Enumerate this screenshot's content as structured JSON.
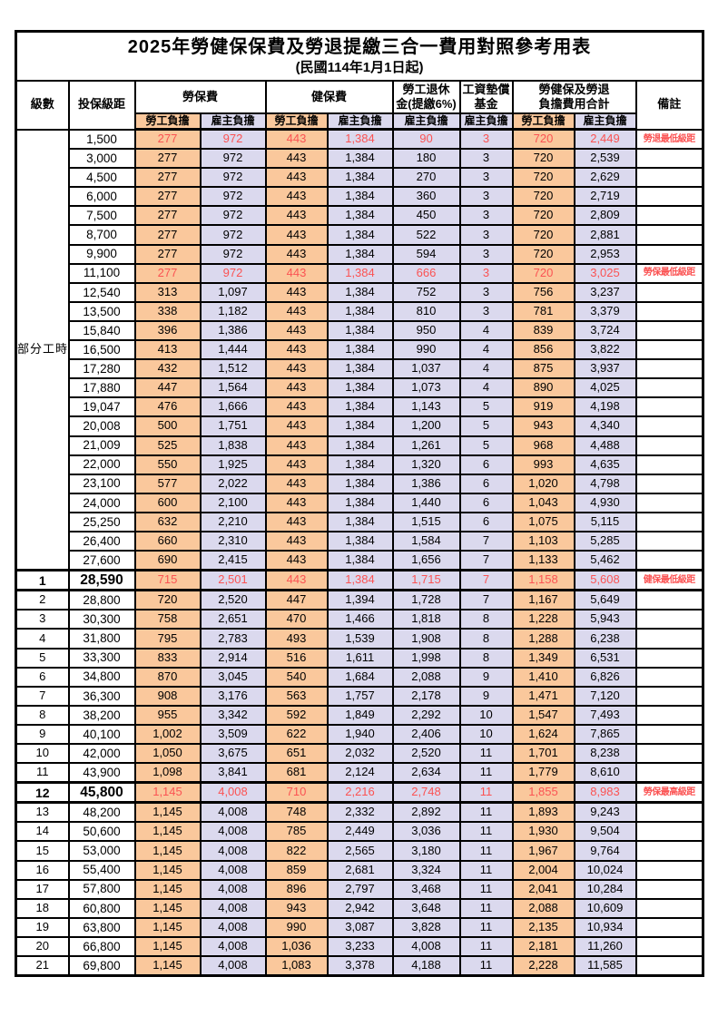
{
  "title": "2025年勞健保保費及勞退提繳三合一費用對照參考用表",
  "subtitle": "(民國114年1月1日起)",
  "colors": {
    "employee_column_bg": "#FAC89C",
    "employer_column_bg": "#DBD9EE",
    "highlight_text": "#FB5353",
    "grid_line": "#000000"
  },
  "header": {
    "level": "級數",
    "bracket": "投保級距",
    "labor": "勞保費",
    "health": "健保費",
    "pension_line1": "勞工退休",
    "pension_line2": "金(提繳6%)",
    "wage_fund_line1": "工資墊償",
    "wage_fund_line2": "基金",
    "total_line1": "勞健保及勞退",
    "total_line2": "負擔費用合計",
    "remark": "備註",
    "employee": "勞工負擔",
    "employer": "雇主負擔"
  },
  "part_time_label": "部分工時",
  "rows": [
    {
      "level": "",
      "bracket": "1,500",
      "values": [
        "277",
        "972",
        "443",
        "1,384",
        "90",
        "3",
        "720",
        "2,449"
      ],
      "remark": "勞退最低級距",
      "red": true
    },
    {
      "level": "",
      "bracket": "3,000",
      "values": [
        "277",
        "972",
        "443",
        "1,384",
        "180",
        "3",
        "720",
        "2,539"
      ],
      "remark": ""
    },
    {
      "level": "",
      "bracket": "4,500",
      "values": [
        "277",
        "972",
        "443",
        "1,384",
        "270",
        "3",
        "720",
        "2,629"
      ],
      "remark": ""
    },
    {
      "level": "",
      "bracket": "6,000",
      "values": [
        "277",
        "972",
        "443",
        "1,384",
        "360",
        "3",
        "720",
        "2,719"
      ],
      "remark": ""
    },
    {
      "level": "",
      "bracket": "7,500",
      "values": [
        "277",
        "972",
        "443",
        "1,384",
        "450",
        "3",
        "720",
        "2,809"
      ],
      "remark": ""
    },
    {
      "level": "",
      "bracket": "8,700",
      "values": [
        "277",
        "972",
        "443",
        "1,384",
        "522",
        "3",
        "720",
        "2,881"
      ],
      "remark": ""
    },
    {
      "level": "",
      "bracket": "9,900",
      "values": [
        "277",
        "972",
        "443",
        "1,384",
        "594",
        "3",
        "720",
        "2,953"
      ],
      "remark": ""
    },
    {
      "level": "",
      "bracket": "11,100",
      "values": [
        "277",
        "972",
        "443",
        "1,384",
        "666",
        "3",
        "720",
        "3,025"
      ],
      "remark": "勞保最低級距",
      "red": true
    },
    {
      "level": "",
      "bracket": "12,540",
      "values": [
        "313",
        "1,097",
        "443",
        "1,384",
        "752",
        "3",
        "756",
        "3,237"
      ],
      "remark": ""
    },
    {
      "level": "",
      "bracket": "13,500",
      "values": [
        "338",
        "1,182",
        "443",
        "1,384",
        "810",
        "3",
        "781",
        "3,379"
      ],
      "remark": ""
    },
    {
      "level": "",
      "bracket": "15,840",
      "values": [
        "396",
        "1,386",
        "443",
        "1,384",
        "950",
        "4",
        "839",
        "3,724"
      ],
      "remark": ""
    },
    {
      "level": "",
      "bracket": "16,500",
      "values": [
        "413",
        "1,444",
        "443",
        "1,384",
        "990",
        "4",
        "856",
        "3,822"
      ],
      "remark": ""
    },
    {
      "level": "",
      "bracket": "17,280",
      "values": [
        "432",
        "1,512",
        "443",
        "1,384",
        "1,037",
        "4",
        "875",
        "3,937"
      ],
      "remark": ""
    },
    {
      "level": "",
      "bracket": "17,880",
      "values": [
        "447",
        "1,564",
        "443",
        "1,384",
        "1,073",
        "4",
        "890",
        "4,025"
      ],
      "remark": ""
    },
    {
      "level": "",
      "bracket": "19,047",
      "values": [
        "476",
        "1,666",
        "443",
        "1,384",
        "1,143",
        "5",
        "919",
        "4,198"
      ],
      "remark": ""
    },
    {
      "level": "",
      "bracket": "20,008",
      "values": [
        "500",
        "1,751",
        "443",
        "1,384",
        "1,200",
        "5",
        "943",
        "4,340"
      ],
      "remark": ""
    },
    {
      "level": "",
      "bracket": "21,009",
      "values": [
        "525",
        "1,838",
        "443",
        "1,384",
        "1,261",
        "5",
        "968",
        "4,488"
      ],
      "remark": ""
    },
    {
      "level": "",
      "bracket": "22,000",
      "values": [
        "550",
        "1,925",
        "443",
        "1,384",
        "1,320",
        "6",
        "993",
        "4,635"
      ],
      "remark": ""
    },
    {
      "level": "",
      "bracket": "23,100",
      "values": [
        "577",
        "2,022",
        "443",
        "1,384",
        "1,386",
        "6",
        "1,020",
        "4,798"
      ],
      "remark": ""
    },
    {
      "level": "",
      "bracket": "24,000",
      "values": [
        "600",
        "2,100",
        "443",
        "1,384",
        "1,440",
        "6",
        "1,043",
        "4,930"
      ],
      "remark": ""
    },
    {
      "level": "",
      "bracket": "25,250",
      "values": [
        "632",
        "2,210",
        "443",
        "1,384",
        "1,515",
        "6",
        "1,075",
        "5,115"
      ],
      "remark": ""
    },
    {
      "level": "",
      "bracket": "26,400",
      "values": [
        "660",
        "2,310",
        "443",
        "1,384",
        "1,584",
        "7",
        "1,103",
        "5,285"
      ],
      "remark": ""
    },
    {
      "level": "",
      "bracket": "27,600",
      "values": [
        "690",
        "2,415",
        "443",
        "1,384",
        "1,656",
        "7",
        "1,133",
        "5,462"
      ],
      "remark": ""
    },
    {
      "level": "1",
      "bracket": "28,590",
      "values": [
        "715",
        "2,501",
        "443",
        "1,384",
        "1,715",
        "7",
        "1,158",
        "5,608"
      ],
      "remark": "健保最低級距",
      "red": true,
      "key": true
    },
    {
      "level": "2",
      "bracket": "28,800",
      "values": [
        "720",
        "2,520",
        "447",
        "1,394",
        "1,728",
        "7",
        "1,167",
        "5,649"
      ],
      "remark": ""
    },
    {
      "level": "3",
      "bracket": "30,300",
      "values": [
        "758",
        "2,651",
        "470",
        "1,466",
        "1,818",
        "8",
        "1,228",
        "5,943"
      ],
      "remark": ""
    },
    {
      "level": "4",
      "bracket": "31,800",
      "values": [
        "795",
        "2,783",
        "493",
        "1,539",
        "1,908",
        "8",
        "1,288",
        "6,238"
      ],
      "remark": ""
    },
    {
      "level": "5",
      "bracket": "33,300",
      "values": [
        "833",
        "2,914",
        "516",
        "1,611",
        "1,998",
        "8",
        "1,349",
        "6,531"
      ],
      "remark": ""
    },
    {
      "level": "6",
      "bracket": "34,800",
      "values": [
        "870",
        "3,045",
        "540",
        "1,684",
        "2,088",
        "9",
        "1,410",
        "6,826"
      ],
      "remark": ""
    },
    {
      "level": "7",
      "bracket": "36,300",
      "values": [
        "908",
        "3,176",
        "563",
        "1,757",
        "2,178",
        "9",
        "1,471",
        "7,120"
      ],
      "remark": ""
    },
    {
      "level": "8",
      "bracket": "38,200",
      "values": [
        "955",
        "3,342",
        "592",
        "1,849",
        "2,292",
        "10",
        "1,547",
        "7,493"
      ],
      "remark": ""
    },
    {
      "level": "9",
      "bracket": "40,100",
      "values": [
        "1,002",
        "3,509",
        "622",
        "1,940",
        "2,406",
        "10",
        "1,624",
        "7,865"
      ],
      "remark": ""
    },
    {
      "level": "10",
      "bracket": "42,000",
      "values": [
        "1,050",
        "3,675",
        "651",
        "2,032",
        "2,520",
        "11",
        "1,701",
        "8,238"
      ],
      "remark": ""
    },
    {
      "level": "11",
      "bracket": "43,900",
      "values": [
        "1,098",
        "3,841",
        "681",
        "2,124",
        "2,634",
        "11",
        "1,779",
        "8,610"
      ],
      "remark": ""
    },
    {
      "level": "12",
      "bracket": "45,800",
      "values": [
        "1,145",
        "4,008",
        "710",
        "2,216",
        "2,748",
        "11",
        "1,855",
        "8,983"
      ],
      "remark": "勞保最高級距",
      "red": true,
      "key": true
    },
    {
      "level": "13",
      "bracket": "48,200",
      "values": [
        "1,145",
        "4,008",
        "748",
        "2,332",
        "2,892",
        "11",
        "1,893",
        "9,243"
      ],
      "remark": ""
    },
    {
      "level": "14",
      "bracket": "50,600",
      "values": [
        "1,145",
        "4,008",
        "785",
        "2,449",
        "3,036",
        "11",
        "1,930",
        "9,504"
      ],
      "remark": ""
    },
    {
      "level": "15",
      "bracket": "53,000",
      "values": [
        "1,145",
        "4,008",
        "822",
        "2,565",
        "3,180",
        "11",
        "1,967",
        "9,764"
      ],
      "remark": ""
    },
    {
      "level": "16",
      "bracket": "55,400",
      "values": [
        "1,145",
        "4,008",
        "859",
        "2,681",
        "3,324",
        "11",
        "2,004",
        "10,024"
      ],
      "remark": ""
    },
    {
      "level": "17",
      "bracket": "57,800",
      "values": [
        "1,145",
        "4,008",
        "896",
        "2,797",
        "3,468",
        "11",
        "2,041",
        "10,284"
      ],
      "remark": ""
    },
    {
      "level": "18",
      "bracket": "60,800",
      "values": [
        "1,145",
        "4,008",
        "943",
        "2,942",
        "3,648",
        "11",
        "2,088",
        "10,609"
      ],
      "remark": ""
    },
    {
      "level": "19",
      "bracket": "63,800",
      "values": [
        "1,145",
        "4,008",
        "990",
        "3,087",
        "3,828",
        "11",
        "2,135",
        "10,934"
      ],
      "remark": ""
    },
    {
      "level": "20",
      "bracket": "66,800",
      "values": [
        "1,145",
        "4,008",
        "1,036",
        "3,233",
        "4,008",
        "11",
        "2,181",
        "11,260"
      ],
      "remark": ""
    },
    {
      "level": "21",
      "bracket": "69,800",
      "values": [
        "1,145",
        "4,008",
        "1,083",
        "3,378",
        "4,188",
        "11",
        "2,228",
        "11,585"
      ],
      "remark": ""
    }
  ]
}
